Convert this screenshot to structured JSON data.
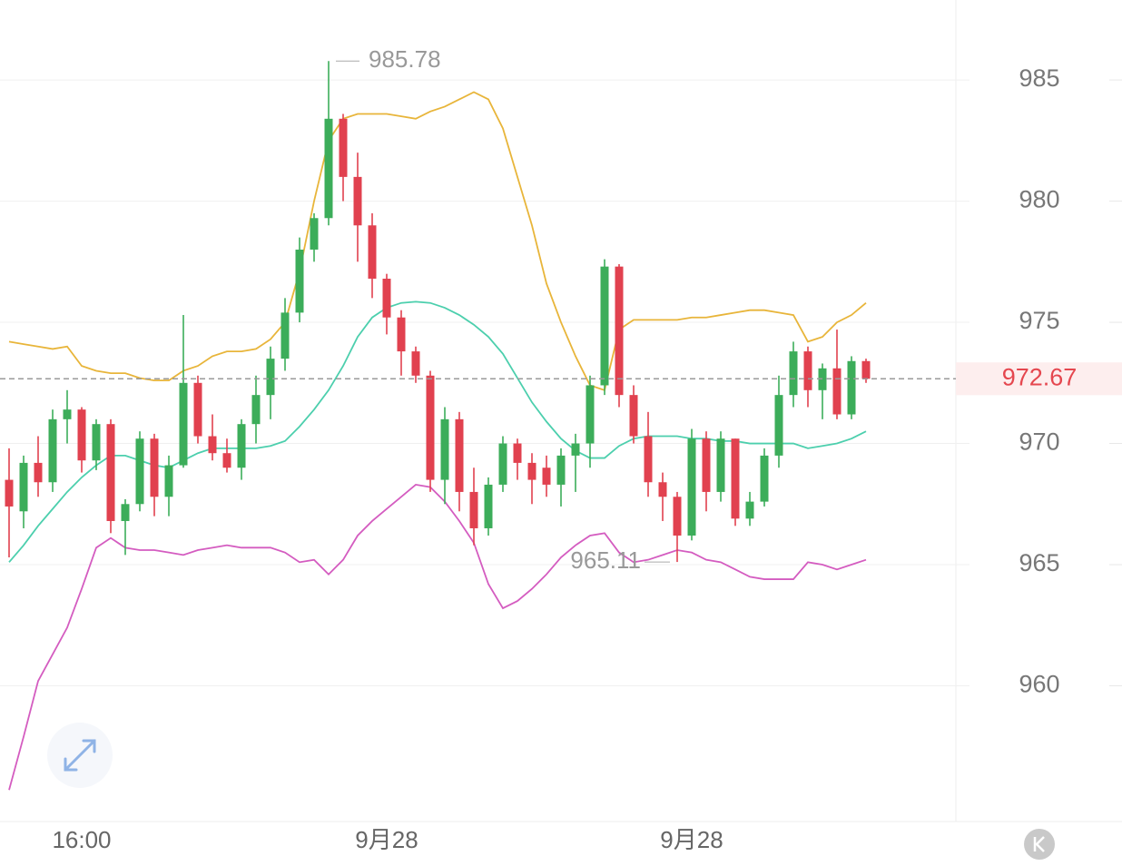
{
  "chart_data": {
    "type": "candlestick",
    "categories": [
      null,
      null,
      null,
      null,
      null,
      "16:00",
      null,
      null,
      null,
      null,
      null,
      null,
      null,
      null,
      null,
      null,
      null,
      null,
      null,
      null,
      null,
      null,
      null,
      null,
      null,
      null,
      "9月28",
      null,
      null,
      null,
      null,
      null,
      null,
      null,
      null,
      null,
      null,
      null,
      null,
      null,
      null,
      null,
      null,
      null,
      null,
      null,
      null,
      "9月28",
      null,
      null,
      null,
      null,
      null,
      null,
      null,
      null,
      null,
      null,
      null,
      null
    ],
    "open": [
      968.5,
      967.2,
      969.2,
      968.4,
      971.0,
      971.4,
      969.3,
      970.8,
      966.8,
      967.5,
      970.2,
      967.8,
      969.1,
      972.5,
      970.3,
      969.6,
      969.0,
      970.8,
      972.0,
      973.5,
      975.4,
      978.0,
      979.3,
      983.4,
      981.0,
      979.0,
      976.8,
      975.2,
      973.8,
      972.8,
      968.5,
      971.0,
      968.0,
      966.5,
      968.3,
      970.0,
      969.2,
      969.0,
      968.3,
      969.5,
      970.0,
      972.4,
      977.3,
      972.0,
      970.3,
      968.4,
      967.8,
      966.2,
      970.2,
      968.0,
      970.2,
      966.9,
      967.6,
      969.5,
      972.0,
      973.8,
      972.2,
      973.1,
      971.2,
      973.4
    ],
    "high": [
      969.8,
      969.5,
      970.3,
      971.4,
      972.2,
      971.5,
      971.0,
      971.0,
      967.7,
      970.5,
      970.4,
      969.5,
      975.3,
      972.8,
      971.2,
      970.2,
      971.0,
      972.8,
      974.0,
      976.0,
      978.5,
      979.5,
      985.78,
      983.6,
      982.0,
      979.5,
      977.0,
      975.5,
      974.0,
      973.0,
      971.5,
      971.3,
      969.0,
      968.6,
      970.3,
      970.2,
      969.6,
      969.5,
      969.8,
      970.4,
      972.8,
      977.6,
      977.4,
      972.4,
      971.3,
      968.8,
      968.0,
      970.6,
      970.5,
      970.5,
      970.2,
      968.0,
      969.8,
      972.8,
      974.2,
      974.0,
      973.3,
      974.7,
      973.6,
      973.5
    ],
    "low": [
      965.3,
      966.5,
      967.8,
      968.0,
      970.0,
      968.8,
      968.9,
      966.3,
      965.4,
      967.2,
      967.0,
      967.0,
      969.0,
      970.0,
      969.3,
      968.8,
      968.5,
      970.0,
      971.0,
      973.0,
      975.0,
      977.5,
      979.0,
      980.0,
      977.5,
      976.0,
      974.5,
      972.8,
      972.5,
      968.0,
      967.5,
      967.2,
      965.8,
      966.2,
      968.0,
      968.5,
      967.5,
      967.8,
      967.4,
      968.0,
      969.0,
      972.0,
      971.5,
      970.0,
      967.8,
      966.8,
      965.11,
      966.0,
      967.2,
      967.6,
      966.6,
      966.6,
      967.4,
      969.0,
      971.5,
      971.5,
      971.0,
      971.0,
      971.0,
      972.5
    ],
    "close": [
      967.4,
      969.2,
      968.4,
      971.0,
      971.4,
      969.3,
      970.8,
      966.8,
      967.5,
      970.2,
      967.8,
      969.1,
      972.5,
      970.3,
      969.6,
      969.0,
      970.8,
      972.0,
      973.5,
      975.4,
      978.0,
      979.3,
      983.4,
      981.0,
      979.0,
      976.8,
      975.2,
      973.8,
      972.8,
      968.5,
      971.0,
      968.0,
      966.5,
      968.3,
      970.0,
      969.2,
      968.5,
      968.3,
      969.5,
      970.0,
      972.4,
      977.3,
      972.0,
      970.3,
      968.4,
      967.8,
      966.2,
      970.2,
      968.0,
      970.2,
      966.9,
      967.6,
      969.5,
      972.0,
      973.8,
      972.2,
      973.1,
      971.2,
      973.4,
      972.67
    ],
    "up_color": "#3cad5a",
    "down_color": "#e1414f",
    "bands": [
      {
        "color": "#e8b53a",
        "values": [
          974.2,
          974.1,
          974.0,
          973.9,
          974.0,
          973.2,
          973.0,
          972.9,
          972.9,
          972.7,
          972.6,
          972.6,
          973.0,
          973.2,
          973.6,
          973.8,
          973.8,
          973.9,
          974.3,
          975.0,
          977.1,
          980.0,
          982.5,
          983.4,
          983.6,
          983.6,
          983.6,
          983.5,
          983.4,
          983.7,
          983.9,
          984.2,
          984.5,
          984.2,
          983.0,
          981.0,
          979.0,
          976.6,
          975.0,
          973.6,
          972.4,
          972.2,
          974.7,
          975.1,
          975.1,
          975.1,
          975.1,
          975.2,
          975.2,
          975.3,
          975.4,
          975.5,
          975.5,
          975.4,
          975.3,
          974.2,
          974.4,
          975.0,
          975.3,
          975.8
        ]
      },
      {
        "color": "#4ccfad",
        "values": [
          965.1,
          965.8,
          966.6,
          967.3,
          968.0,
          968.6,
          969.1,
          969.5,
          969.5,
          969.3,
          969.1,
          969.0,
          969.3,
          969.6,
          969.8,
          969.8,
          969.8,
          969.8,
          969.9,
          970.1,
          970.7,
          971.4,
          972.2,
          973.2,
          974.4,
          975.2,
          975.6,
          975.8,
          975.85,
          975.8,
          975.6,
          975.3,
          974.9,
          974.4,
          973.7,
          972.7,
          971.7,
          970.9,
          970.2,
          969.7,
          969.4,
          969.4,
          969.9,
          970.2,
          970.3,
          970.3,
          970.3,
          970.2,
          970.2,
          970.1,
          970.1,
          970.0,
          970.0,
          970.0,
          970.0,
          969.8,
          969.9,
          970.0,
          970.2,
          970.5
        ]
      },
      {
        "color": "#d45cc0",
        "values": [
          955.7,
          957.9,
          960.2,
          961.3,
          962.4,
          964.0,
          965.7,
          966.1,
          965.7,
          965.6,
          965.6,
          965.5,
          965.4,
          965.6,
          965.7,
          965.8,
          965.7,
          965.7,
          965.7,
          965.5,
          965.1,
          965.2,
          964.6,
          965.2,
          966.2,
          966.8,
          967.3,
          967.8,
          968.3,
          968.2,
          967.6,
          966.8,
          965.9,
          964.2,
          963.2,
          963.5,
          964.0,
          964.6,
          965.3,
          965.8,
          966.2,
          966.3,
          965.5,
          965.1,
          965.2,
          965.4,
          965.6,
          965.5,
          965.2,
          965.1,
          964.8,
          964.5,
          964.4,
          964.4,
          964.4,
          965.1,
          965.0,
          964.8,
          965.0,
          965.2
        ]
      }
    ],
    "ylim": [
      954.4,
      988.3
    ],
    "yticks": [
      960,
      965,
      970,
      975,
      980,
      985
    ],
    "grid": true,
    "last_color": "#e5474f"
  }
}
